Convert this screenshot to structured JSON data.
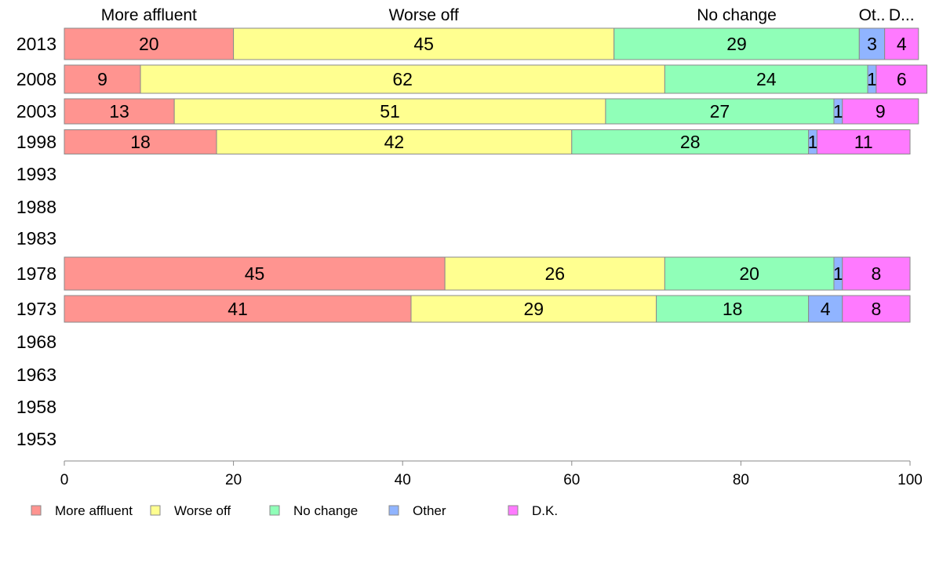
{
  "colors": {
    "More affluent": "#ff9490",
    "Worse off": "#ffff90",
    "No change": "#90ffb8",
    "Other": "#90b4ff",
    "D.K.": "#ff7aff"
  },
  "header_labels": [
    "More affluent",
    "Worse off",
    "No change",
    "Ot..",
    "D..."
  ],
  "chart_data": {
    "type": "bar",
    "orientation": "horizontal",
    "stacked": true,
    "categories": [
      "2013",
      "2008",
      "2003",
      "1998",
      "1993",
      "1988",
      "1983",
      "1978",
      "1973",
      "1968",
      "1963",
      "1958",
      "1953"
    ],
    "series": [
      {
        "name": "More affluent",
        "values": [
          20,
          9,
          13,
          18,
          null,
          null,
          null,
          45,
          41,
          null,
          null,
          null,
          null
        ]
      },
      {
        "name": "Worse off",
        "values": [
          45,
          62,
          51,
          42,
          null,
          null,
          null,
          26,
          29,
          null,
          null,
          null,
          null
        ]
      },
      {
        "name": "No change",
        "values": [
          29,
          24,
          27,
          28,
          null,
          null,
          null,
          20,
          18,
          null,
          null,
          null,
          null
        ]
      },
      {
        "name": "Other",
        "values": [
          3,
          1,
          1,
          1,
          null,
          null,
          null,
          1,
          4,
          null,
          null,
          null,
          null
        ]
      },
      {
        "name": "D.K.",
        "values": [
          4,
          6,
          9,
          11,
          null,
          null,
          null,
          8,
          8,
          null,
          null,
          null,
          null
        ]
      }
    ],
    "xlim": [
      0,
      100
    ],
    "xticks": [
      0,
      20,
      40,
      60,
      80,
      100
    ],
    "legend_position": "bottom",
    "grid": false
  }
}
